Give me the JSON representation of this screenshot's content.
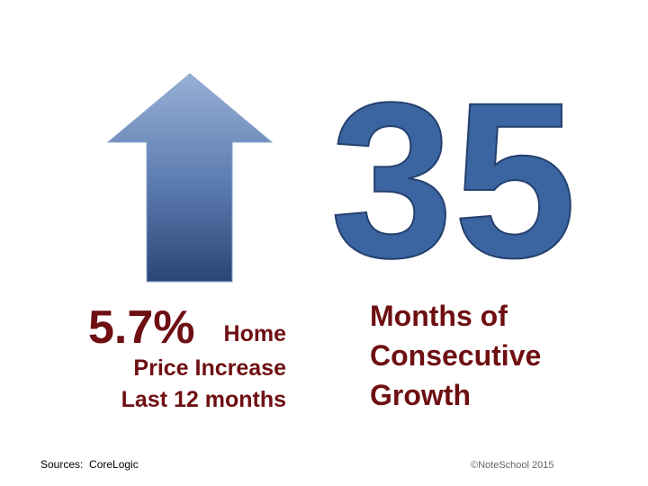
{
  "left": {
    "stat": "5.7%",
    "label_lines": [
      "Home",
      "Price Increase",
      "Last 12 months"
    ]
  },
  "right": {
    "stat": "35",
    "label_lines": [
      "Months of",
      "Consecutive",
      "Growth"
    ]
  },
  "footer": {
    "source": "Sources:  CoreLogic",
    "copyright": "©NoteSchool 2015"
  }
}
